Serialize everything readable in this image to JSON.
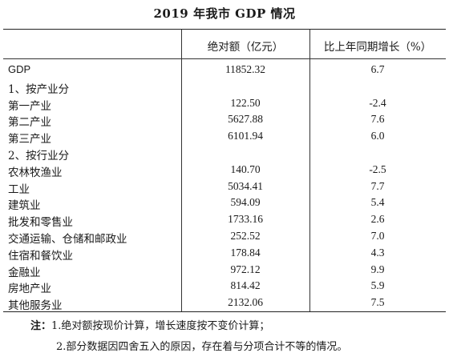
{
  "title": "2019 年我市 GDP 情况",
  "table": {
    "headers": {
      "label": "",
      "absolute": "绝对额（亿元）",
      "growth": "比上年同期增长（%）"
    },
    "rows": [
      {
        "label": "GDP",
        "absolute": "11852.32",
        "growth": "6.7"
      },
      {
        "label": "1、按产业分",
        "absolute": "",
        "growth": ""
      },
      {
        "label": "第一产业",
        "absolute": "122.50",
        "growth": "-2.4"
      },
      {
        "label": "第二产业",
        "absolute": "5627.88",
        "growth": "7.6"
      },
      {
        "label": "第三产业",
        "absolute": "6101.94",
        "growth": "6.0"
      },
      {
        "label": "2、按行业分",
        "absolute": "",
        "growth": ""
      },
      {
        "label": "农林牧渔业",
        "absolute": "140.70",
        "growth": "-2.5"
      },
      {
        "label": "工业",
        "absolute": "5034.41",
        "growth": "7.7"
      },
      {
        "label": "建筑业",
        "absolute": "594.09",
        "growth": "5.4"
      },
      {
        "label": "批发和零售业",
        "absolute": "1733.16",
        "growth": "2.6"
      },
      {
        "label": "交通运输、仓储和邮政业",
        "absolute": "252.52",
        "growth": "7.0"
      },
      {
        "label": "住宿和餐饮业",
        "absolute": "178.84",
        "growth": "4.3"
      },
      {
        "label": "金融业",
        "absolute": "972.12",
        "growth": "9.9"
      },
      {
        "label": "房地产业",
        "absolute": "814.42",
        "growth": "5.9"
      },
      {
        "label": "其他服务业",
        "absolute": "2132.06",
        "growth": "7.5"
      }
    ]
  },
  "notes": {
    "prefix": "注：",
    "line1": "1.绝对额按现价计算，增长速度按不变价计算；",
    "line2": "2.部分数据因四舍五入的原因，存在着与分项合计不等的情况。"
  }
}
